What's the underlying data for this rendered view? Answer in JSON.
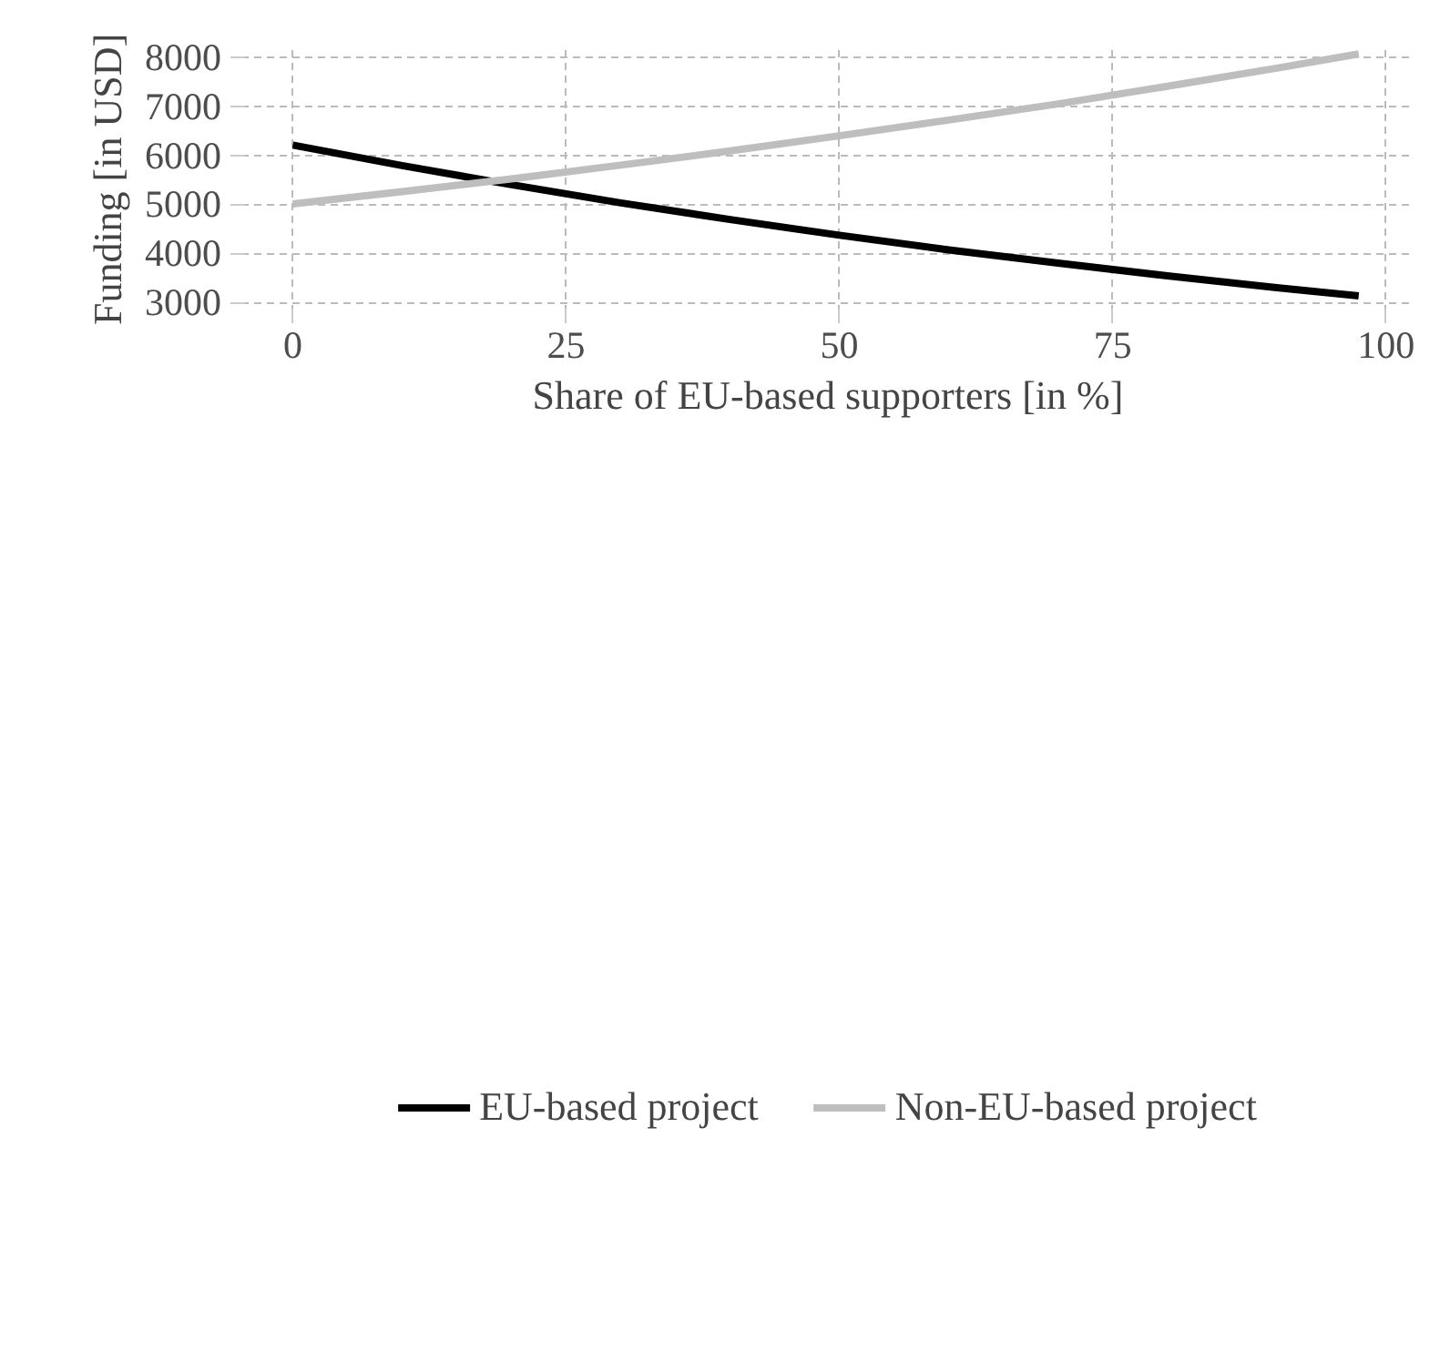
{
  "chart_data": {
    "type": "line",
    "xlabel": "Share of EU-based supporters [in %]",
    "ylabel": "Funding [in USD]",
    "xlim": [
      -4.7,
      102.6
    ],
    "ylim": [
      2797,
      8223
    ],
    "xticks": [
      0,
      25,
      50,
      75,
      100
    ],
    "yticks": [
      3000,
      4000,
      5000,
      6000,
      7000,
      8000
    ],
    "grid": true,
    "legend": "bottom",
    "line_style": "solid",
    "marker": "none",
    "x": [
      0,
      10,
      20,
      30,
      40,
      50,
      60,
      70,
      80,
      90,
      97.5
    ],
    "series": [
      {
        "name": "EU-based project",
        "color": "#000000",
        "values": [
          6210,
          5790,
          5400,
          5030,
          4690,
          4370,
          4070,
          3800,
          3540,
          3300,
          3130
        ]
      },
      {
        "name": "Non-EU-based project",
        "color": "#bebebe",
        "values": [
          5010,
          5260,
          5520,
          5800,
          6090,
          6400,
          6720,
          7050,
          7410,
          7780,
          8070
        ]
      }
    ]
  }
}
